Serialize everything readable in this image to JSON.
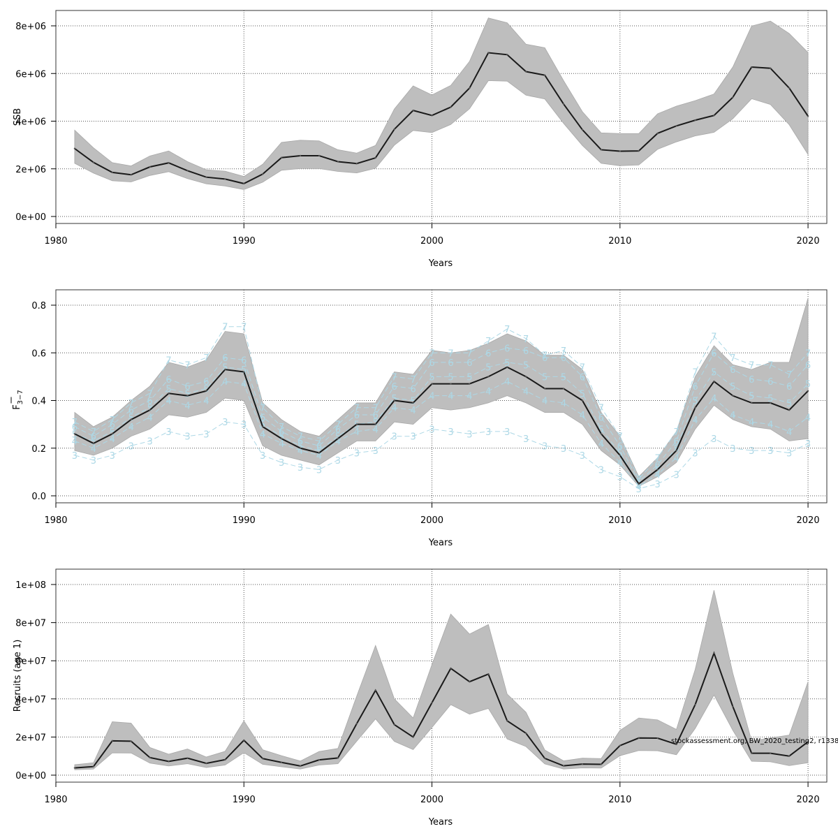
{
  "colors": {
    "band": "#bebebe",
    "band_edge": "#a8a8a8",
    "line": "#1a1a1a",
    "age_lines": "#add8e6",
    "grid": "#555555"
  },
  "footnote": "stockassessment.org, BW_2020_testing2, r1338",
  "chart_data": [
    {
      "type": "line",
      "id": "ssb",
      "title": "",
      "xlabel": "Years",
      "ylabel": "SSB",
      "xlim": [
        1980,
        2021
      ],
      "ylim": [
        0,
        8000000
      ],
      "xticks": [
        1980,
        1990,
        2000,
        2010,
        2020
      ],
      "xtick_labels": [
        "1980",
        "1990",
        "2000",
        "2010",
        "2020"
      ],
      "yticks": [
        0,
        2000000,
        4000000,
        6000000,
        8000000
      ],
      "ytick_labels": [
        "0e+00",
        "2e+06",
        "4e+06",
        "6e+06",
        "8e+06"
      ],
      "grid": true,
      "x": [
        1981,
        1982,
        1983,
        1984,
        1985,
        1986,
        1987,
        1988,
        1989,
        1990,
        1991,
        1992,
        1993,
        1994,
        1995,
        1996,
        1997,
        1998,
        1999,
        2000,
        2001,
        2002,
        2003,
        2004,
        2005,
        2006,
        2007,
        2008,
        2009,
        2010,
        2011,
        2012,
        2013,
        2014,
        2015,
        2016,
        2017,
        2018,
        2019,
        2020
      ],
      "series": [
        {
          "values": [
            2850000,
            2270000,
            1850000,
            1750000,
            2080000,
            2250000,
            1920000,
            1650000,
            1570000,
            1380000,
            1780000,
            2470000,
            2550000,
            2550000,
            2300000,
            2220000,
            2460000,
            3660000,
            4450000,
            4240000,
            4590000,
            5390000,
            6870000,
            6790000,
            6080000,
            5930000,
            4720000,
            3640000,
            2800000,
            2740000,
            2750000,
            3490000,
            3800000,
            4040000,
            4240000,
            5000000,
            6270000,
            6220000,
            5390000,
            4210000
          ]
        },
        {
          "name": "lower",
          "values": [
            2230000,
            1820000,
            1500000,
            1450000,
            1720000,
            1880000,
            1590000,
            1370000,
            1280000,
            1130000,
            1440000,
            1940000,
            2010000,
            2010000,
            1890000,
            1830000,
            2020000,
            2990000,
            3610000,
            3520000,
            3860000,
            4520000,
            5700000,
            5680000,
            5090000,
            4930000,
            3910000,
            2980000,
            2230000,
            2130000,
            2160000,
            2820000,
            3130000,
            3380000,
            3530000,
            4100000,
            4940000,
            4700000,
            3850000,
            2600000
          ]
        },
        {
          "name": "upper",
          "values": [
            3620000,
            2880000,
            2260000,
            2120000,
            2540000,
            2750000,
            2300000,
            1960000,
            1900000,
            1680000,
            2190000,
            3110000,
            3200000,
            3170000,
            2800000,
            2660000,
            2980000,
            4510000,
            5480000,
            5100000,
            5500000,
            6510000,
            8330000,
            8130000,
            7230000,
            7080000,
            5700000,
            4400000,
            3510000,
            3480000,
            3480000,
            4310000,
            4630000,
            4860000,
            5140000,
            6270000,
            7990000,
            8200000,
            7680000,
            6880000
          ]
        }
      ]
    },
    {
      "type": "line",
      "id": "fbar",
      "title": "",
      "xlabel": "Years",
      "ylabel": "F̄3−7",
      "ylabel_main": "F",
      "ylabel_sub": "3−7",
      "xlim": [
        1980,
        2021
      ],
      "ylim": [
        0,
        0.8
      ],
      "xticks": [
        1980,
        1990,
        2000,
        2010,
        2020
      ],
      "xtick_labels": [
        "1980",
        "1990",
        "2000",
        "2010",
        "2020"
      ],
      "yticks": [
        0,
        0.2,
        0.4,
        0.6,
        0.8
      ],
      "ytick_labels": [
        "0.0",
        "0.2",
        "0.4",
        "0.6",
        "0.8"
      ],
      "grid": true,
      "x": [
        1981,
        1982,
        1983,
        1984,
        1985,
        1986,
        1987,
        1988,
        1989,
        1990,
        1991,
        1992,
        1993,
        1994,
        1995,
        1996,
        1997,
        1998,
        1999,
        2000,
        2001,
        2002,
        2003,
        2004,
        2005,
        2006,
        2007,
        2008,
        2009,
        2010,
        2011,
        2012,
        2013,
        2014,
        2015,
        2016,
        2017,
        2018,
        2019,
        2020
      ],
      "series": [
        {
          "values": [
            0.26,
            0.22,
            0.26,
            0.32,
            0.36,
            0.43,
            0.42,
            0.44,
            0.53,
            0.52,
            0.29,
            0.24,
            0.2,
            0.18,
            0.24,
            0.3,
            0.3,
            0.4,
            0.39,
            0.47,
            0.47,
            0.47,
            0.5,
            0.54,
            0.5,
            0.45,
            0.45,
            0.4,
            0.26,
            0.17,
            0.05,
            0.11,
            0.19,
            0.37,
            0.48,
            0.42,
            0.39,
            0.39,
            0.36,
            0.44
          ]
        },
        {
          "name": "lower",
          "values": [
            0.19,
            0.17,
            0.2,
            0.25,
            0.28,
            0.34,
            0.33,
            0.35,
            0.41,
            0.4,
            0.21,
            0.17,
            0.15,
            0.13,
            0.18,
            0.23,
            0.23,
            0.31,
            0.3,
            0.37,
            0.36,
            0.37,
            0.39,
            0.42,
            0.39,
            0.35,
            0.35,
            0.3,
            0.19,
            0.13,
            0.04,
            0.08,
            0.14,
            0.28,
            0.38,
            0.32,
            0.29,
            0.28,
            0.23,
            0.24
          ]
        },
        {
          "name": "upper",
          "values": [
            0.35,
            0.29,
            0.33,
            0.4,
            0.46,
            0.56,
            0.54,
            0.57,
            0.69,
            0.68,
            0.39,
            0.32,
            0.27,
            0.25,
            0.32,
            0.39,
            0.39,
            0.52,
            0.51,
            0.61,
            0.6,
            0.61,
            0.64,
            0.68,
            0.65,
            0.59,
            0.59,
            0.53,
            0.35,
            0.25,
            0.08,
            0.16,
            0.27,
            0.5,
            0.63,
            0.55,
            0.53,
            0.56,
            0.56,
            0.83
          ]
        },
        {
          "name": "3",
          "values": [
            0.17,
            0.15,
            0.17,
            0.21,
            0.23,
            0.27,
            0.25,
            0.26,
            0.31,
            0.3,
            0.17,
            0.14,
            0.12,
            0.11,
            0.15,
            0.18,
            0.19,
            0.25,
            0.25,
            0.28,
            0.27,
            0.26,
            0.27,
            0.27,
            0.24,
            0.21,
            0.2,
            0.17,
            0.11,
            0.08,
            0.03,
            0.05,
            0.09,
            0.18,
            0.24,
            0.2,
            0.19,
            0.19,
            0.18,
            0.22
          ]
        },
        {
          "name": "4",
          "values": [
            0.23,
            0.2,
            0.24,
            0.29,
            0.33,
            0.4,
            0.38,
            0.4,
            0.48,
            0.47,
            0.26,
            0.22,
            0.19,
            0.17,
            0.23,
            0.27,
            0.28,
            0.37,
            0.36,
            0.42,
            0.42,
            0.42,
            0.44,
            0.48,
            0.44,
            0.4,
            0.39,
            0.34,
            0.22,
            0.14,
            0.04,
            0.09,
            0.16,
            0.32,
            0.41,
            0.34,
            0.31,
            0.3,
            0.27,
            0.33
          ]
        },
        {
          "name": "5",
          "values": [
            0.26,
            0.23,
            0.27,
            0.33,
            0.37,
            0.45,
            0.43,
            0.45,
            0.54,
            0.53,
            0.3,
            0.25,
            0.21,
            0.19,
            0.25,
            0.3,
            0.31,
            0.41,
            0.4,
            0.5,
            0.5,
            0.5,
            0.54,
            0.56,
            0.55,
            0.5,
            0.5,
            0.43,
            0.28,
            0.18,
            0.05,
            0.11,
            0.2,
            0.4,
            0.52,
            0.46,
            0.42,
            0.41,
            0.39,
            0.47
          ]
        },
        {
          "name": "6",
          "values": [
            0.29,
            0.25,
            0.3,
            0.36,
            0.4,
            0.49,
            0.46,
            0.48,
            0.58,
            0.57,
            0.33,
            0.27,
            0.23,
            0.21,
            0.28,
            0.34,
            0.34,
            0.46,
            0.45,
            0.56,
            0.56,
            0.56,
            0.6,
            0.62,
            0.61,
            0.58,
            0.58,
            0.5,
            0.33,
            0.21,
            0.06,
            0.13,
            0.23,
            0.46,
            0.6,
            0.53,
            0.49,
            0.48,
            0.46,
            0.55
          ]
        },
        {
          "name": "7",
          "values": [
            0.31,
            0.27,
            0.32,
            0.39,
            0.43,
            0.57,
            0.55,
            0.58,
            0.71,
            0.71,
            0.37,
            0.29,
            0.25,
            0.23,
            0.3,
            0.37,
            0.37,
            0.5,
            0.49,
            0.6,
            0.6,
            0.6,
            0.65,
            0.7,
            0.66,
            0.59,
            0.61,
            0.54,
            0.37,
            0.25,
            0.07,
            0.16,
            0.27,
            0.52,
            0.67,
            0.58,
            0.55,
            0.55,
            0.51,
            0.6
          ]
        }
      ]
    },
    {
      "type": "line",
      "id": "recruits",
      "title": "",
      "xlabel": "Years",
      "ylabel": "Recruits (age 1)",
      "xlim": [
        1980,
        2021
      ],
      "ylim": [
        0,
        100000000
      ],
      "xticks": [
        1980,
        1990,
        2000,
        2010,
        2020
      ],
      "xtick_labels": [
        "1980",
        "1990",
        "2000",
        "2010",
        "2020"
      ],
      "yticks": [
        0,
        20000000,
        40000000,
        60000000,
        80000000,
        100000000
      ],
      "ytick_labels": [
        "0e+00",
        "2e+07",
        "4e+07",
        "6e+07",
        "8e+07",
        "1e+08"
      ],
      "grid": true,
      "x": [
        1981,
        1982,
        1983,
        1984,
        1985,
        1986,
        1987,
        1988,
        1989,
        1990,
        1991,
        1992,
        1993,
        1994,
        1995,
        1996,
        1997,
        1998,
        1999,
        2000,
        2001,
        2002,
        2003,
        2004,
        2005,
        2006,
        2007,
        2008,
        2009,
        2010,
        2011,
        2012,
        2013,
        2014,
        2015,
        2016,
        2017,
        2018,
        2019,
        2020
      ],
      "series": [
        {
          "values": [
            3800000,
            4500000,
            18000000,
            17800000,
            9200000,
            7200000,
            8900000,
            6200000,
            8100000,
            18300000,
            8700000,
            6700000,
            4800000,
            8000000,
            9000000,
            27000000,
            44500000,
            26500000,
            20000000,
            38000000,
            56000000,
            49000000,
            53000000,
            28500000,
            22000000,
            8800000,
            4900000,
            5800000,
            5700000,
            15500000,
            19500000,
            19400000,
            16200000,
            37000000,
            64000000,
            36000000,
            11500000,
            11500000,
            10000000,
            17500000
          ]
        },
        {
          "name": "lower",
          "values": [
            2800000,
            3200000,
            11700000,
            11600000,
            6300000,
            4800000,
            6000000,
            4000000,
            5300000,
            11800000,
            5700000,
            4400000,
            3200000,
            5300000,
            6000000,
            17800000,
            29500000,
            17700000,
            13400000,
            25000000,
            37000000,
            32000000,
            35000000,
            19000000,
            15000000,
            5900000,
            3200000,
            3800000,
            3700000,
            10200000,
            12900000,
            12800000,
            10700000,
            24500000,
            42000000,
            23500000,
            7300000,
            7000000,
            5000000,
            6500000
          ]
        },
        {
          "name": "upper",
          "values": [
            5500000,
            6500000,
            28000000,
            27300000,
            14500000,
            11000000,
            13700000,
            9500000,
            12500000,
            28500000,
            13300000,
            10200000,
            7400000,
            12400000,
            14000000,
            41500000,
            68000000,
            40000000,
            30000000,
            58000000,
            84500000,
            74000000,
            79000000,
            42500000,
            33000000,
            13200000,
            7500000,
            8900000,
            8700000,
            23500000,
            30000000,
            29000000,
            24000000,
            55500000,
            97000000,
            53500000,
            18000000,
            19500000,
            21000000,
            49000000
          ]
        }
      ]
    }
  ]
}
